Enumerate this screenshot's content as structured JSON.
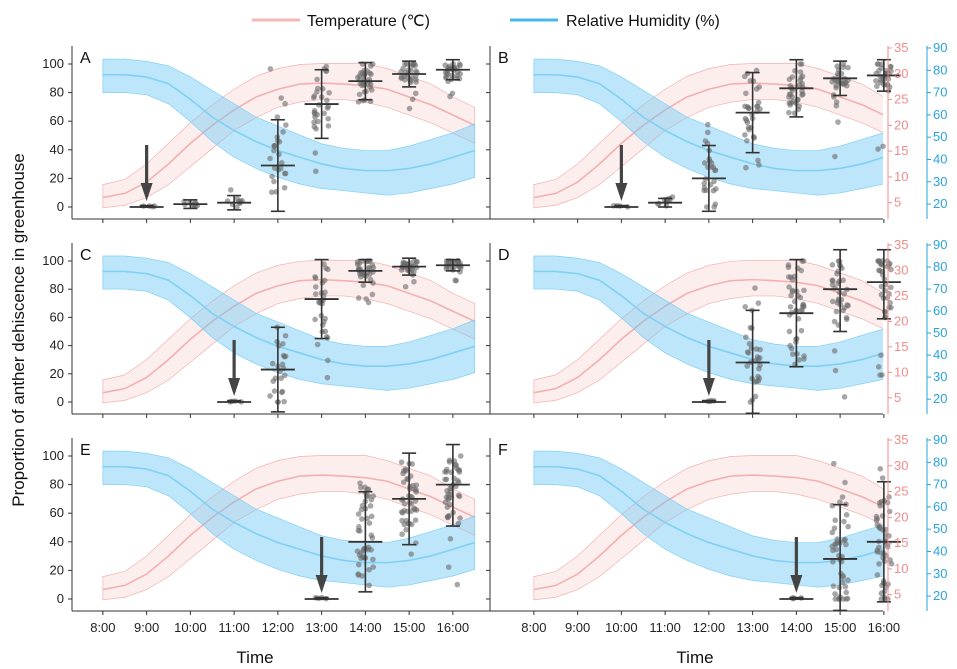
{
  "chart_data": {
    "type": "scatter",
    "ylabel": "Proportion of anther dehiscence in greenhouse",
    "xlabel": "Time",
    "x_categories": [
      "8:00",
      "9:00",
      "10:00",
      "11:00",
      "12:00",
      "13:00",
      "14:00",
      "15:00",
      "16:00"
    ],
    "left_axis": {
      "range": [
        0,
        100
      ],
      "ticks": [
        0,
        20,
        40,
        60,
        80,
        100
      ]
    },
    "temperature_axis": {
      "range": [
        3,
        35
      ],
      "ticks": [
        5,
        10,
        15,
        20,
        25,
        30,
        35
      ],
      "color": "#f08c8c"
    },
    "humidity_axis": {
      "range": [
        16,
        90
      ],
      "ticks": [
        20,
        30,
        40,
        50,
        60,
        70,
        80,
        90
      ],
      "color": "#2aa3df"
    },
    "legend": {
      "position": "top-center",
      "items": [
        {
          "label": "Temperature (℃)",
          "color": "#f4b6b6"
        },
        {
          "label": "Relative Humidity (%)",
          "color": "#46b8ee"
        }
      ]
    },
    "environment": {
      "temperature": {
        "x": [
          8.0,
          8.5,
          9.0,
          9.5,
          10.0,
          10.5,
          11.0,
          11.5,
          12.0,
          12.5,
          13.0,
          13.5,
          14.0,
          14.5,
          15.0,
          15.5,
          16.0,
          16.5
        ],
        "mean": [
          6.0,
          6.8,
          9.0,
          12.5,
          16.5,
          20.0,
          23.0,
          25.5,
          27.0,
          28.0,
          28.2,
          28.0,
          27.7,
          27.0,
          25.5,
          24.0,
          22.0,
          20.0
        ],
        "upper": [
          8.5,
          9.5,
          12.5,
          16.5,
          20.5,
          24.0,
          27.0,
          29.5,
          31.0,
          31.8,
          32.0,
          32.0,
          32.0,
          31.0,
          29.5,
          28.0,
          25.5,
          23.5
        ],
        "lower": [
          4.0,
          4.5,
          6.0,
          8.5,
          12.0,
          15.5,
          19.0,
          21.5,
          23.5,
          24.5,
          25.0,
          25.0,
          24.5,
          23.5,
          22.0,
          20.5,
          18.5,
          16.5
        ]
      },
      "humidity": {
        "x": [
          8.0,
          8.5,
          9.0,
          9.5,
          10.0,
          10.5,
          11.0,
          11.5,
          12.0,
          12.5,
          13.0,
          13.5,
          14.0,
          14.5,
          15.0,
          15.5,
          16.0,
          16.5
        ],
        "mean": [
          78,
          78,
          77,
          74,
          67,
          59,
          53,
          48,
          44,
          41,
          38,
          36,
          35,
          35,
          36,
          38,
          41,
          44
        ],
        "upper": [
          85,
          85,
          84,
          82,
          77,
          71,
          65,
          59,
          55,
          51,
          47,
          45,
          44,
          44,
          46,
          49,
          52,
          56
        ],
        "lower": [
          70,
          70,
          69,
          65,
          57,
          48,
          41,
          36,
          32,
          29,
          27,
          26,
          25,
          24,
          25,
          27,
          29,
          32
        ]
      }
    },
    "panels": [
      {
        "label": "A",
        "arrow_at": "9:00",
        "right_axes": false,
        "groups": [
          {
            "time": "9:00",
            "mean": 0,
            "sd": 1,
            "n": 4,
            "min": 0,
            "max": 1
          },
          {
            "time": "10:00",
            "mean": 2,
            "sd": 3,
            "n": 10,
            "min": 0,
            "max": 10
          },
          {
            "time": "11:00",
            "mean": 3,
            "sd": 5,
            "n": 10,
            "min": 0,
            "max": 18
          },
          {
            "time": "12:00",
            "mean": 29,
            "sd": 32,
            "n": 26,
            "min": 0,
            "max": 99
          },
          {
            "time": "13:00",
            "mean": 72,
            "sd": 24,
            "n": 30,
            "min": 24,
            "max": 100
          },
          {
            "time": "14:00",
            "mean": 88,
            "sd": 13,
            "n": 34,
            "min": 60,
            "max": 100
          },
          {
            "time": "15:00",
            "mean": 93,
            "sd": 9,
            "n": 30,
            "min": 65,
            "max": 100
          },
          {
            "time": "16:00",
            "mean": 96,
            "sd": 7,
            "n": 30,
            "min": 77,
            "max": 100
          }
        ]
      },
      {
        "label": "B",
        "arrow_at": "10:00",
        "right_axes": true,
        "groups": [
          {
            "time": "10:00",
            "mean": 0,
            "sd": 1,
            "n": 4,
            "min": 0,
            "max": 1
          },
          {
            "time": "11:00",
            "mean": 3,
            "sd": 3,
            "n": 10,
            "min": 0,
            "max": 10
          },
          {
            "time": "12:00",
            "mean": 20,
            "sd": 23,
            "n": 26,
            "min": 0,
            "max": 63
          },
          {
            "time": "13:00",
            "mean": 66,
            "sd": 28,
            "n": 32,
            "min": 10,
            "max": 100
          },
          {
            "time": "14:00",
            "mean": 83,
            "sd": 20,
            "n": 34,
            "min": 22,
            "max": 100
          },
          {
            "time": "15:00",
            "mean": 90,
            "sd": 12,
            "n": 30,
            "min": 30,
            "max": 100
          },
          {
            "time": "16:00",
            "mean": 92,
            "sd": 11,
            "n": 30,
            "min": 40,
            "max": 100
          }
        ]
      },
      {
        "label": "C",
        "arrow_at": "11:00",
        "right_axes": false,
        "groups": [
          {
            "time": "11:00",
            "mean": 0,
            "sd": 1,
            "n": 4,
            "min": 0,
            "max": 1
          },
          {
            "time": "12:00",
            "mean": 23,
            "sd": 30,
            "n": 24,
            "min": 0,
            "max": 92
          },
          {
            "time": "13:00",
            "mean": 73,
            "sd": 28,
            "n": 30,
            "min": 10,
            "max": 100
          },
          {
            "time": "14:00",
            "mean": 93,
            "sd": 8,
            "n": 34,
            "min": 68,
            "max": 100
          },
          {
            "time": "15:00",
            "mean": 96,
            "sd": 6,
            "n": 30,
            "min": 80,
            "max": 100
          },
          {
            "time": "16:00",
            "mean": 97,
            "sd": 4,
            "n": 30,
            "min": 85,
            "max": 100
          }
        ]
      },
      {
        "label": "D",
        "arrow_at": "12:00",
        "right_axes": true,
        "groups": [
          {
            "time": "12:00",
            "mean": 0,
            "sd": 1,
            "n": 4,
            "min": 0,
            "max": 1
          },
          {
            "time": "13:00",
            "mean": 28,
            "sd": 37,
            "n": 30,
            "min": 0,
            "max": 100
          },
          {
            "time": "14:00",
            "mean": 63,
            "sd": 38,
            "n": 44,
            "min": 0,
            "max": 100
          },
          {
            "time": "15:00",
            "mean": 80,
            "sd": 30,
            "n": 36,
            "min": 2,
            "max": 100
          },
          {
            "time": "16:00",
            "mean": 85,
            "sd": 26,
            "n": 36,
            "min": 5,
            "max": 100
          }
        ]
      },
      {
        "label": "E",
        "arrow_at": "13:00",
        "right_axes": false,
        "groups": [
          {
            "time": "13:00",
            "mean": 0,
            "sd": 1,
            "n": 4,
            "min": 0,
            "max": 1
          },
          {
            "time": "14:00",
            "mean": 40,
            "sd": 35,
            "n": 46,
            "min": 0,
            "max": 100
          },
          {
            "time": "15:00",
            "mean": 70,
            "sd": 32,
            "n": 46,
            "min": 0,
            "max": 100
          },
          {
            "time": "16:00",
            "mean": 80,
            "sd": 29,
            "n": 46,
            "min": 5,
            "max": 100
          }
        ]
      },
      {
        "label": "F",
        "arrow_at": "14:00",
        "right_axes": true,
        "groups": [
          {
            "time": "14:00",
            "mean": 0,
            "sd": 1,
            "n": 4,
            "min": 0,
            "max": 1
          },
          {
            "time": "15:00",
            "mean": 28,
            "sd": 38,
            "n": 46,
            "min": 0,
            "max": 100
          },
          {
            "time": "16:00",
            "mean": 40,
            "sd": 42,
            "n": 50,
            "min": 0,
            "max": 100
          }
        ]
      }
    ]
  }
}
